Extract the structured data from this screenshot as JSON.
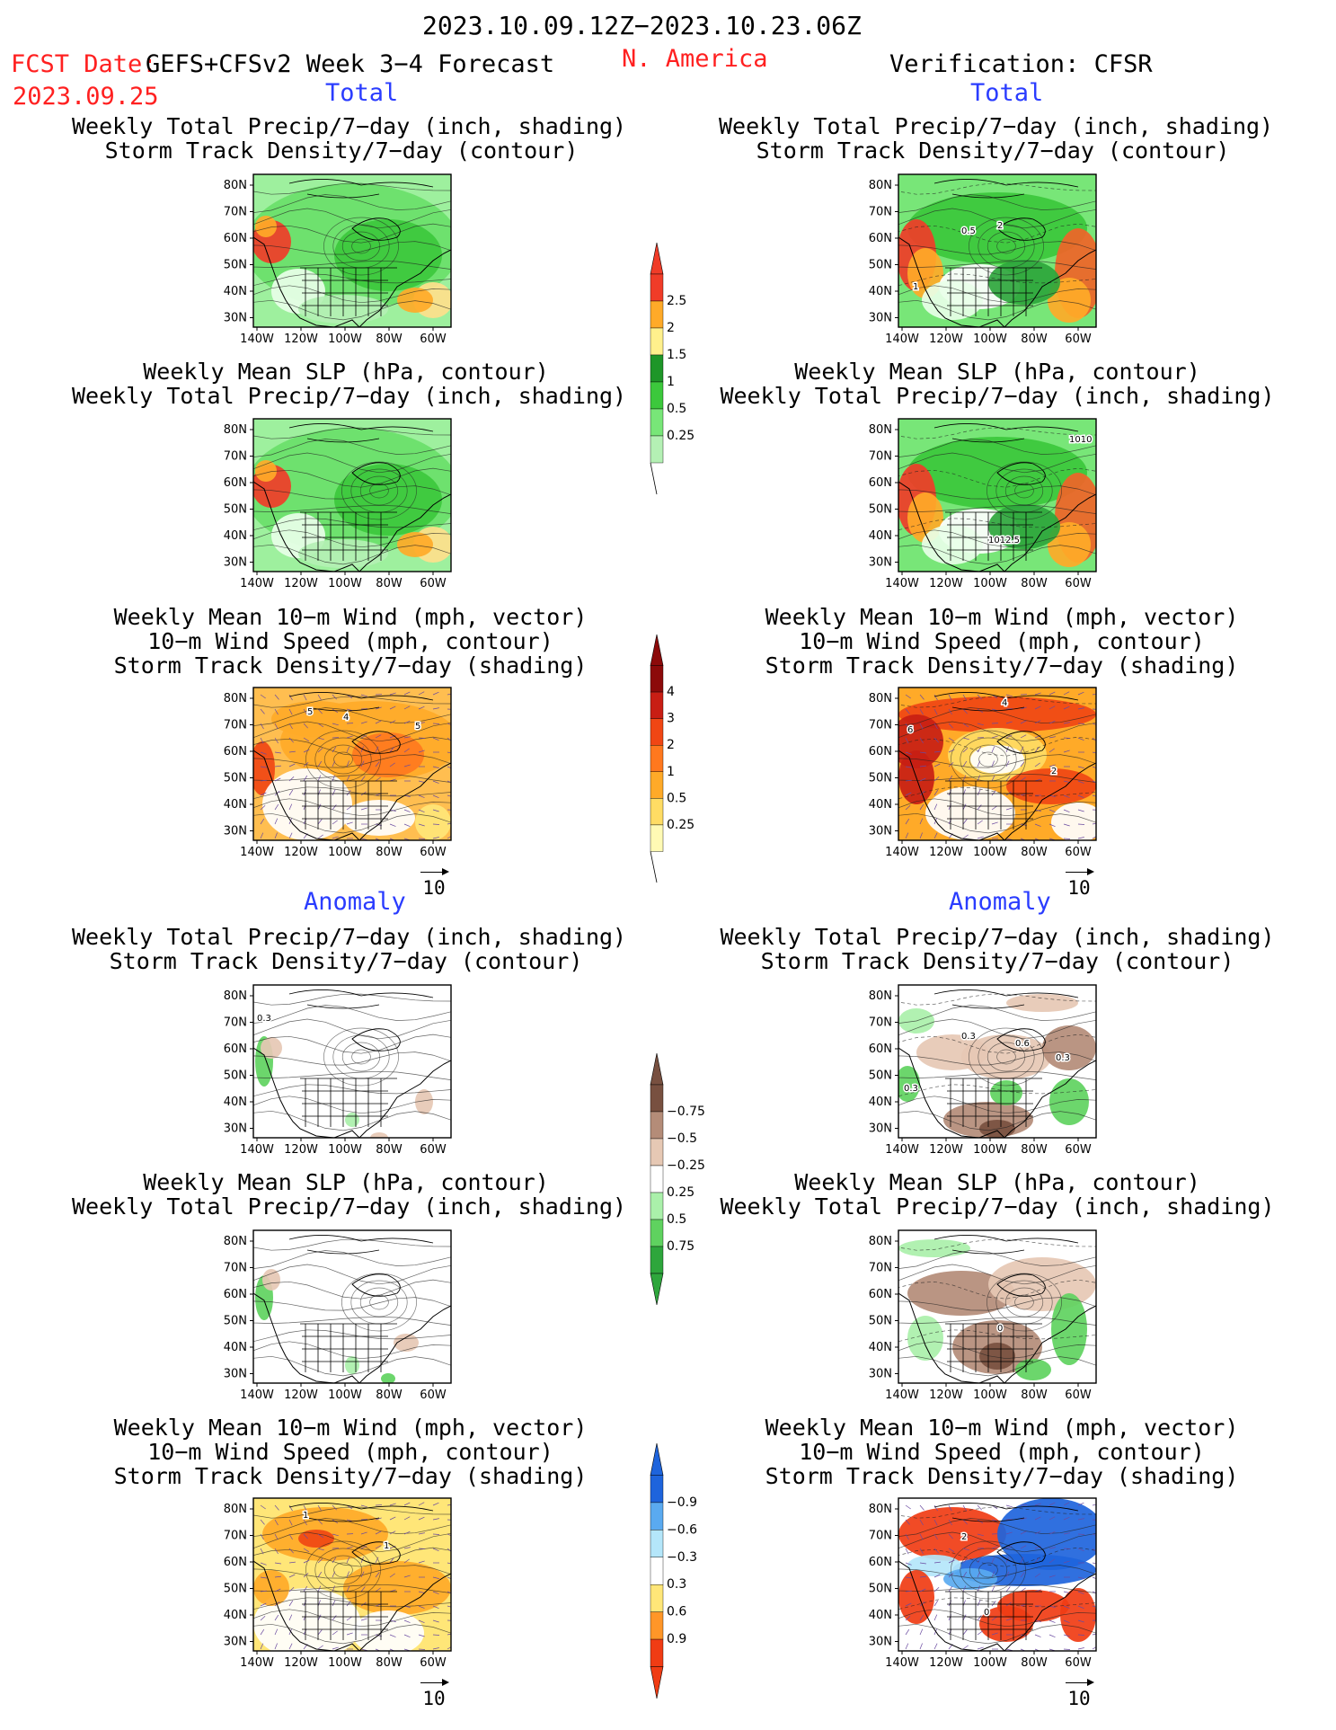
{
  "header": {
    "date_range": "2023.10.09.12Z−2023.10.23.06Z",
    "fcst_label": "FCST Date:",
    "fcst_source": "GEFS+CFSv2 Week 3−4 Forecast",
    "fcst_date": "2023.09.25",
    "region": "N. America",
    "verification": "Verification: CFSR"
  },
  "sections": {
    "total_left": "Total",
    "total_right": "Total",
    "anomaly_left": "Anomaly",
    "anomaly_right": "Anomaly"
  },
  "titles": {
    "precip_storm": [
      "Weekly Total Precip/7−day (inch, shading)",
      "Storm Track Density/7−day (contour)"
    ],
    "slp_precip": [
      "Weekly Mean SLP (hPa, contour)",
      "Weekly Total Precip/7−day (inch, shading)"
    ],
    "wind_storm": [
      "Weekly Mean 10−m Wind (mph, vector)",
      "10−m Wind Speed (mph, contour)",
      "Storm Track Density/7−day (shading)"
    ]
  },
  "axes": {
    "lat_ticks": [
      "80N",
      "70N",
      "60N",
      "50N",
      "40N",
      "30N"
    ],
    "lon_ticks": [
      "140W",
      "120W",
      "100W",
      "80W",
      "60W"
    ]
  },
  "vector_reference": "10",
  "colorbars": {
    "precip_total": {
      "levels": [
        "0.25",
        "0.5",
        "1",
        "1.5",
        "2",
        "2.5"
      ],
      "colors": [
        "#b4f0b4",
        "#78e678",
        "#3cc83c",
        "#1e9628",
        "#fff08c",
        "#ffaa28",
        "#f03c28"
      ],
      "first_white": true
    },
    "storm_total": {
      "levels": [
        "0.25",
        "0.5",
        "1",
        "2",
        "3",
        "4"
      ],
      "colors": [
        "#fffab4",
        "#ffdc64",
        "#ffaa28",
        "#ff781e",
        "#f04614",
        "#c81e14",
        "#8c0a0a"
      ],
      "first_white": true
    },
    "precip_anom": {
      "levels": [
        "0.75",
        "0.5",
        "0.25",
        "−0.25",
        "−0.5",
        "−0.75"
      ],
      "colors": [
        "#2ea63c",
        "#5fd25f",
        "#aaf0aa",
        "#ffffff",
        "#e6c8b4",
        "#b48c78",
        "#785040"
      ]
    },
    "storm_anom": {
      "levels": [
        "0.9",
        "0.6",
        "0.3",
        "−0.3",
        "−0.6",
        "−0.9"
      ],
      "colors": [
        "#f03c14",
        "#ff9628",
        "#ffe678",
        "#ffffff",
        "#b4e6fa",
        "#5aaaf0",
        "#1e64dc"
      ]
    }
  },
  "contour_labels": {
    "r1": [
      "0.5",
      "2",
      "1"
    ],
    "r2": [
      "1010",
      "1012.5"
    ],
    "l3": [
      "5",
      "4",
      "5"
    ],
    "r3": [
      "4",
      "6",
      "2"
    ],
    "l4": [
      "0.3"
    ],
    "r4": [
      "0.3",
      "0.6",
      "0.3",
      "0.3"
    ],
    "r5": [
      "0"
    ],
    "l6": [
      "1",
      "1"
    ],
    "r6": [
      "2",
      "0"
    ]
  }
}
